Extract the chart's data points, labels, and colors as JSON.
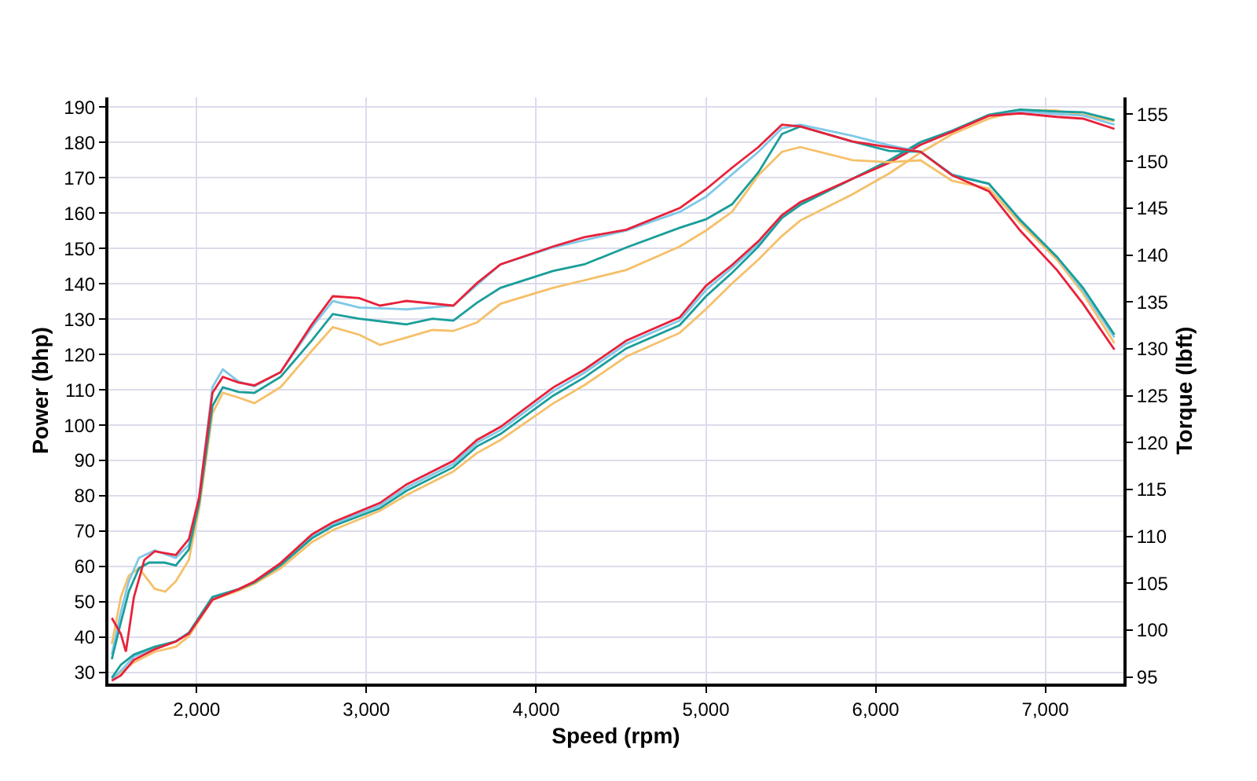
{
  "chart_data": {
    "type": "line",
    "xlabel": "Speed (rpm)",
    "ylabel": "Power (bhp)",
    "y2label": "Torque (lbft)",
    "xlim": [
      1480,
      7460
    ],
    "xticks": [
      {
        "value": 2000,
        "label": "2,000"
      },
      {
        "value": 3000,
        "label": "3,000"
      },
      {
        "value": 4000,
        "label": "4,000"
      },
      {
        "value": 5000,
        "label": "5,000"
      },
      {
        "value": 6000,
        "label": "6,000"
      },
      {
        "value": 7000,
        "label": "7,000"
      }
    ],
    "ylim": [
      26.9,
      192.7
    ],
    "yticks": [
      30,
      40,
      50,
      60,
      70,
      80,
      90,
      100,
      110,
      120,
      130,
      140,
      150,
      160,
      170,
      180,
      190
    ],
    "y2lim": [
      94.3,
      156.8
    ],
    "y2ticks": [
      95,
      100,
      105,
      110,
      115,
      120,
      125,
      130,
      135,
      140,
      145,
      150,
      155
    ],
    "grid": true,
    "marker": "none",
    "line_style": "solid",
    "x": [
      1500,
      1553,
      1630,
      1753,
      1877,
      1954,
      2093,
      2247,
      2340,
      2494,
      2679,
      2802,
      3080,
      3235,
      3512,
      3651,
      3790,
      4099,
      4284,
      4531,
      4846,
      5000,
      5154,
      5309,
      5448,
      5556,
      5864,
      6080,
      6265,
      6451,
      6667,
      6852,
      7068,
      7222,
      7407
    ],
    "series": [
      {
        "color": "#f5c06a",
        "values": [
          28.5,
          30.0,
          32.9,
          35.9,
          37.3,
          40.3,
          50.6,
          53.2,
          55.1,
          59.5,
          66.9,
          70.3,
          75.8,
          80.2,
          86.9,
          92.1,
          95.8,
          106.1,
          111.3,
          119.4,
          126.1,
          132.8,
          140.1,
          146.8,
          153.5,
          157.9,
          165.3,
          171.2,
          177.1,
          182.3,
          186.7,
          189.0,
          189.0,
          187.8,
          186.0
        ]
      },
      {
        "color": "#7fc8e8",
        "values": [
          28.0,
          30.5,
          34.5,
          37.0,
          38.8,
          41.2,
          51.0,
          53.6,
          55.6,
          60.7,
          68.6,
          72.0,
          77.3,
          82.3,
          89.0,
          95.0,
          98.6,
          109.6,
          114.8,
          123.0,
          129.6,
          138.2,
          144.5,
          151.3,
          159.0,
          162.8,
          169.7,
          174.5,
          179.7,
          183.2,
          187.7,
          188.8,
          188.0,
          187.6,
          185.0
        ]
      },
      {
        "color": "#1a9e9a",
        "values": [
          28.5,
          32.2,
          35.1,
          37.3,
          38.8,
          41.3,
          51.4,
          53.6,
          55.5,
          60.3,
          68.0,
          71.4,
          76.5,
          81.4,
          88.1,
          94.0,
          97.5,
          108.3,
          113.5,
          121.7,
          128.3,
          136.4,
          143.1,
          150.5,
          158.6,
          162.3,
          169.7,
          174.9,
          180.1,
          183.3,
          187.8,
          189.3,
          188.7,
          188.5,
          186.3
        ]
      },
      {
        "color": "#e8213a",
        "values": [
          27.7,
          29.2,
          33.6,
          36.6,
          38.8,
          41.0,
          50.6,
          53.6,
          55.8,
          61.0,
          69.1,
          72.5,
          78.0,
          83.2,
          89.9,
          95.8,
          99.5,
          110.6,
          115.7,
          123.9,
          130.5,
          139.4,
          145.3,
          152.0,
          159.4,
          163.1,
          169.7,
          174.2,
          179.3,
          183.0,
          187.5,
          188.2,
          187.2,
          186.7,
          183.8
        ]
      },
      {
        "color": "#f5c06a",
        "axis": "y2",
        "x": [
          1500,
          1553,
          1600,
          1660,
          1753,
          1815,
          1877,
          1954,
          2015,
          2093,
          2154,
          2247,
          2340,
          2494,
          2679,
          2802,
          2957,
          3080,
          3235,
          3389,
          3512,
          3651,
          3790,
          4099,
          4284,
          4531,
          4846,
          5000,
          5154,
          5309,
          5448,
          5556,
          5864,
          6080,
          6265,
          6451,
          6667,
          6852,
          7068,
          7222,
          7407
        ],
        "values": [
          98.5,
          103.5,
          105.8,
          106.6,
          104.4,
          104.1,
          105.2,
          107.5,
          113.0,
          123.1,
          125.3,
          124.8,
          124.2,
          125.9,
          129.8,
          132.3,
          131.5,
          130.4,
          131.2,
          132.0,
          131.9,
          132.8,
          134.8,
          136.5,
          137.3,
          138.4,
          140.9,
          142.6,
          144.6,
          148.5,
          151.0,
          151.5,
          150.1,
          149.9,
          150.1,
          147.9,
          147.1,
          143.4,
          139.5,
          135.9,
          130.6
        ]
      },
      {
        "color": "#7fc8e8",
        "axis": "y2",
        "x": [
          1500,
          1553,
          1600,
          1660,
          1753,
          1877,
          1954,
          2015,
          2093,
          2154,
          2247,
          2340,
          2494,
          2679,
          2802,
          2957,
          3235,
          3512,
          3651,
          3790,
          4099,
          4531,
          4846,
          5000,
          5309,
          5448,
          5556,
          5864,
          6080,
          6265,
          6451,
          6667,
          6852,
          7068,
          7222,
          7407
        ],
        "values": [
          97.4,
          101.9,
          105.2,
          107.7,
          108.5,
          107.7,
          109.1,
          114.2,
          125.9,
          127.8,
          126.5,
          126.0,
          127.5,
          132.3,
          135.1,
          134.4,
          134.2,
          134.6,
          136.8,
          139.0,
          140.8,
          142.6,
          144.6,
          146.2,
          151.0,
          153.5,
          153.9,
          152.7,
          151.7,
          151.0,
          148.6,
          147.6,
          143.8,
          139.8,
          136.2,
          131.2
        ]
      },
      {
        "color": "#1a9e9a",
        "axis": "y2",
        "x": [
          1500,
          1553,
          1600,
          1660,
          1720,
          1810,
          1877,
          1954,
          2015,
          2093,
          2154,
          2247,
          2340,
          2494,
          2679,
          2802,
          2957,
          3235,
          3389,
          3512,
          3651,
          3790,
          4099,
          4284,
          4531,
          4846,
          5000,
          5154,
          5309,
          5448,
          5556,
          5864,
          6080,
          6265,
          6451,
          6667,
          6852,
          7068,
          7222,
          7407
        ],
        "values": [
          96.9,
          100.8,
          104.1,
          106.6,
          107.2,
          107.2,
          106.9,
          108.6,
          113.6,
          123.9,
          125.9,
          125.4,
          125.3,
          127.0,
          130.9,
          133.7,
          133.2,
          132.6,
          133.2,
          133.0,
          134.9,
          136.5,
          138.3,
          139.0,
          140.8,
          142.9,
          143.8,
          145.4,
          148.8,
          152.9,
          153.7,
          152.1,
          151.1,
          151.0,
          148.5,
          147.6,
          143.7,
          139.8,
          136.5,
          131.5
        ]
      },
      {
        "color": "#e8213a",
        "axis": "y2",
        "x": [
          1500,
          1553,
          1583,
          1630,
          1692,
          1753,
          1877,
          1954,
          2015,
          2093,
          2154,
          2247,
          2340,
          2494,
          2679,
          2802,
          2957,
          3080,
          3235,
          3512,
          3651,
          3790,
          4099,
          4284,
          4531,
          4846,
          5000,
          5154,
          5309,
          5448,
          5556,
          5864,
          6080,
          6265,
          6451,
          6667,
          6852,
          7068,
          7222,
          7407
        ],
        "values": [
          101.3,
          99.6,
          97.7,
          103.5,
          107.5,
          108.4,
          108.0,
          109.7,
          114.2,
          125.3,
          127.0,
          126.4,
          126.1,
          127.5,
          132.6,
          135.6,
          135.4,
          134.6,
          135.1,
          134.6,
          137.0,
          139.0,
          140.9,
          141.9,
          142.7,
          145.0,
          147.0,
          149.3,
          151.5,
          153.9,
          153.7,
          152.1,
          151.5,
          151.0,
          148.5,
          146.8,
          142.6,
          138.4,
          134.8,
          129.9
        ]
      }
    ]
  }
}
